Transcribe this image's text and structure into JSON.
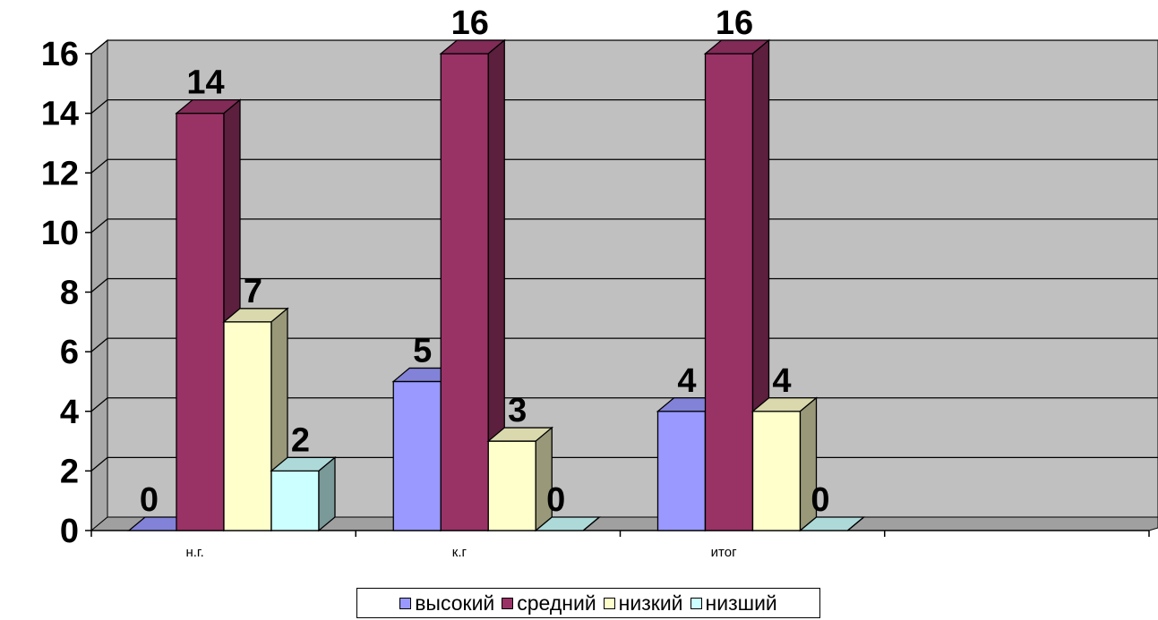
{
  "chart_data": {
    "type": "bar",
    "title": "",
    "xlabel": "",
    "ylabel": "",
    "categories": [
      "н.г.",
      "к.г",
      "итог",
      ""
    ],
    "series": [
      {
        "name": "высокий",
        "values": [
          0,
          5,
          4,
          null
        ],
        "color": "#9999FF"
      },
      {
        "name": "средний",
        "values": [
          14,
          16,
          16,
          null
        ],
        "color": "#993366"
      },
      {
        "name": "низкий",
        "values": [
          7,
          3,
          4,
          null
        ],
        "color": "#FFFFCC"
      },
      {
        "name": "низший",
        "values": [
          2,
          0,
          0,
          null
        ],
        "color": "#CCFFFF"
      }
    ],
    "ylim": [
      0,
      16
    ],
    "yticks": [
      0,
      2,
      4,
      6,
      8,
      10,
      12,
      14,
      16
    ],
    "grid": true,
    "legend_position": "bottom",
    "style": "3d-clustered-column",
    "wall_color": "#C0C0C0"
  }
}
